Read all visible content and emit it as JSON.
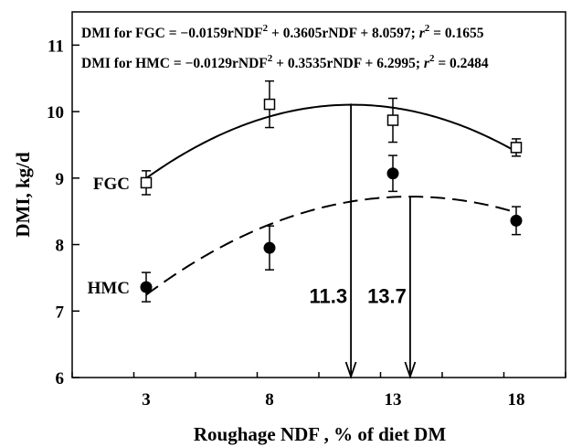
{
  "chart_data": {
    "type": "scatter",
    "title": "",
    "xlabel": "Roughage NDF , % of diet DM",
    "ylabel": "DMI, kg/d",
    "xlim": [
      0,
      20
    ],
    "ylim": [
      6,
      11.5
    ],
    "x_ticks": [
      3,
      8,
      13,
      18
    ],
    "y_ticks": [
      6,
      7,
      8,
      9,
      10,
      11
    ],
    "grid": false,
    "equations": [
      {
        "prefix": "DMI for FGC = −0.0159rNDF",
        "sup": "2",
        "suffix": " + 0.3605rNDF + 8.0597; ",
        "r": "r",
        "r_sup": "2",
        "r_value": " = 0.1655"
      },
      {
        "prefix": "DMI for HMC = −0.0129rNDF",
        "sup": "2",
        "suffix": " + 0.3535rNDF + 6.2995; ",
        "r": "r",
        "r_sup": "2",
        "r_value": " = 0.2484"
      }
    ],
    "series": [
      {
        "name": "FGC",
        "marker": "open-square",
        "line": "solid",
        "fit": {
          "a": -0.0159,
          "b": 0.3605,
          "c": 8.0597
        },
        "x": [
          3,
          8,
          13,
          18
        ],
        "y": [
          8.93,
          10.11,
          9.87,
          9.46
        ],
        "err": [
          0.18,
          0.35,
          0.33,
          0.13
        ]
      },
      {
        "name": "HMC",
        "marker": "filled-circle",
        "line": "dashed",
        "fit": {
          "a": -0.0129,
          "b": 0.3535,
          "c": 6.2995
        },
        "x": [
          3,
          8,
          13,
          18
        ],
        "y": [
          7.36,
          7.95,
          9.07,
          8.36
        ],
        "err": [
          0.22,
          0.33,
          0.27,
          0.21
        ]
      }
    ],
    "annotations": [
      {
        "text": "11.3",
        "x": 11.3,
        "y_top": 10.12
      },
      {
        "text": "13.7",
        "x": 13.7,
        "y_top": 8.72
      }
    ],
    "series_labels": [
      {
        "text": "FGC",
        "x": 3,
        "y": 8.93
      },
      {
        "text": "HMC",
        "x": 3,
        "y": 7.36
      }
    ]
  }
}
